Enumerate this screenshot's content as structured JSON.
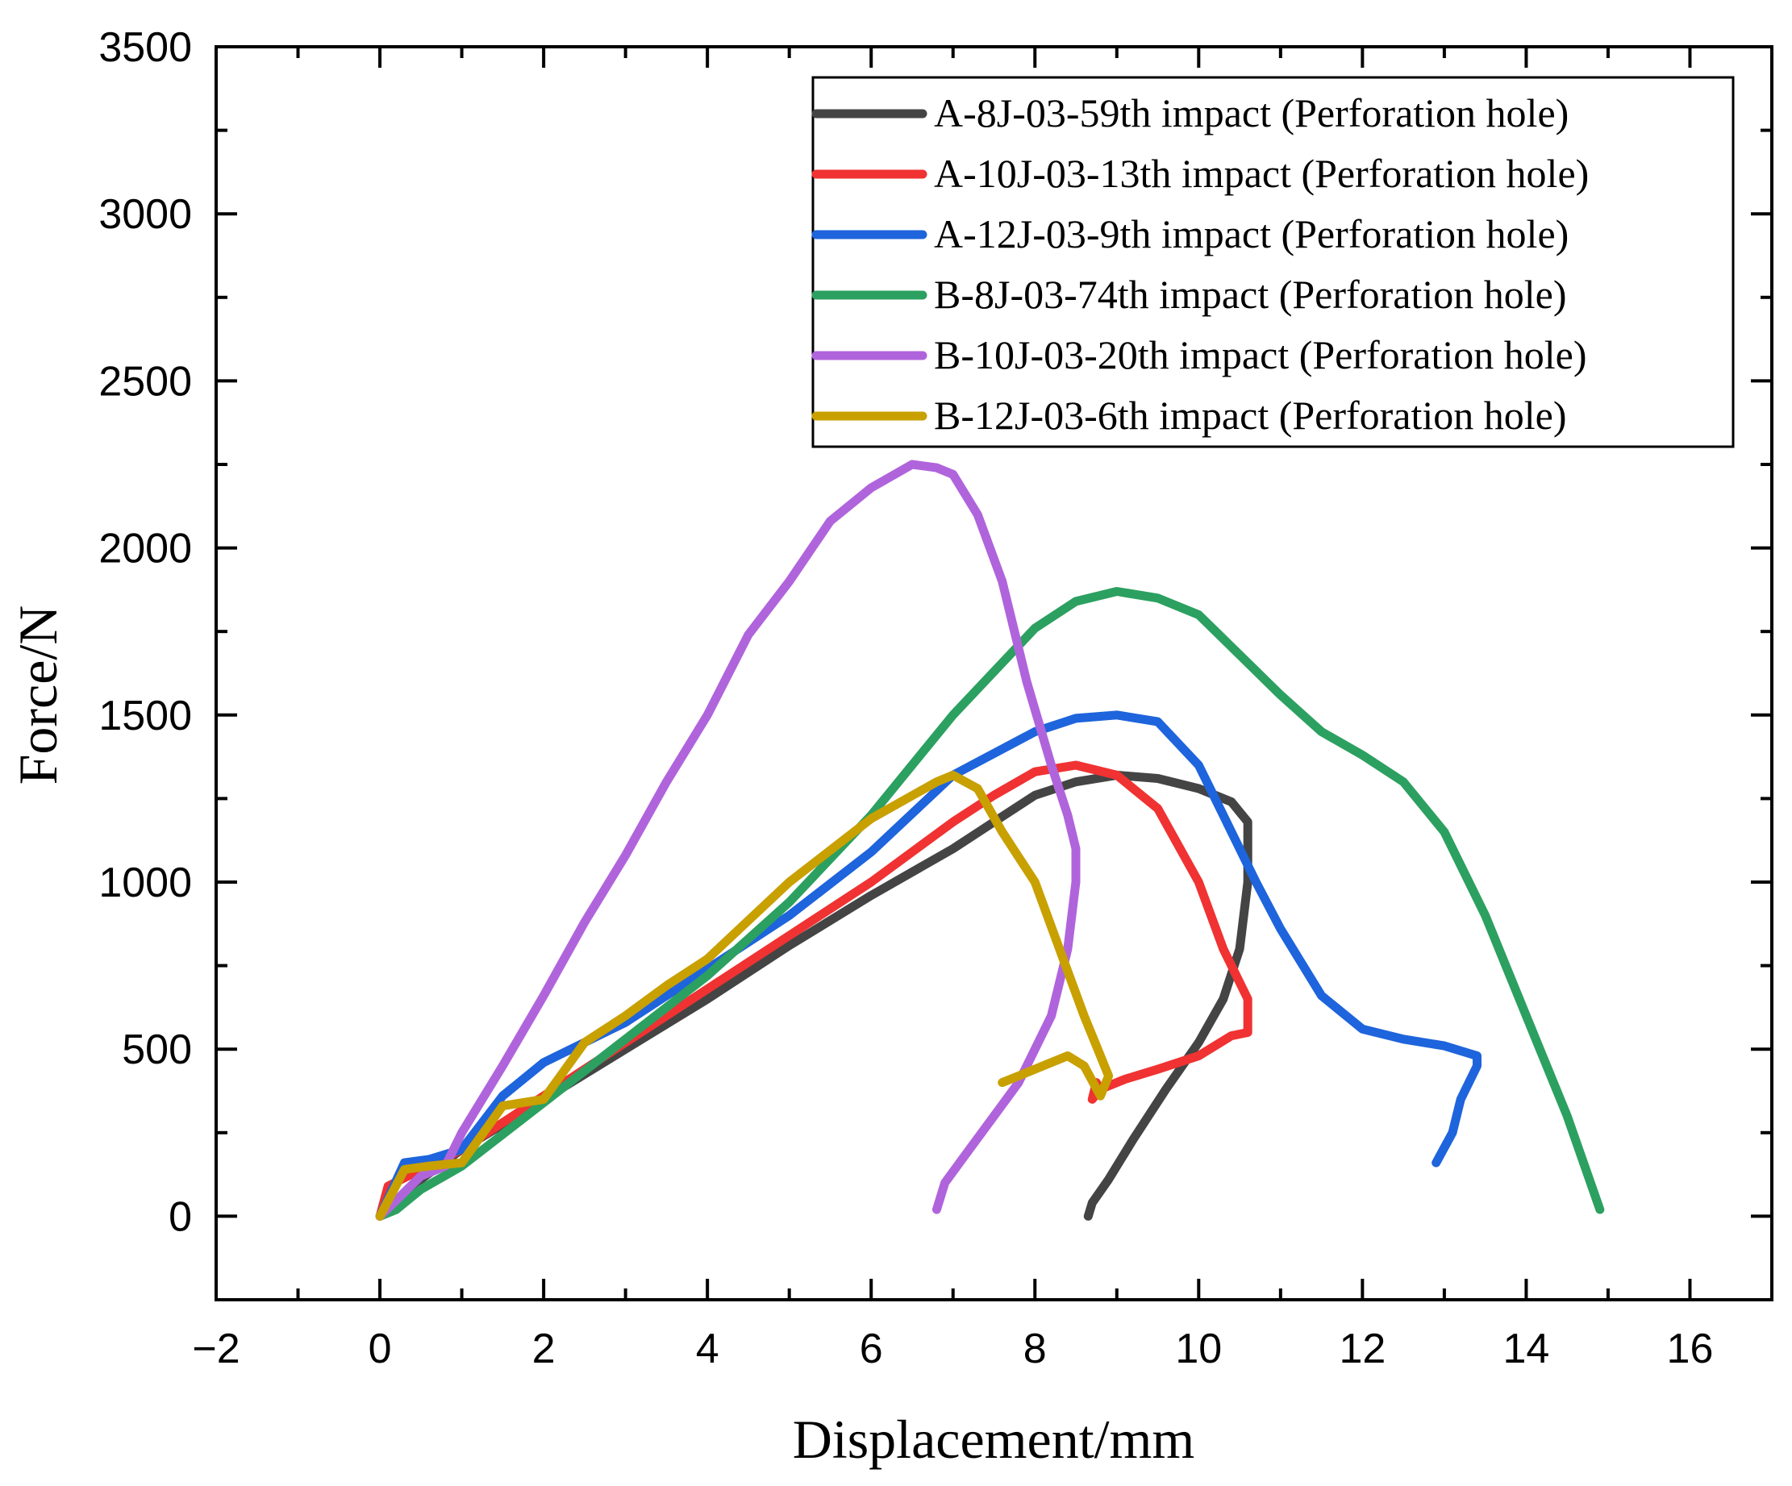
{
  "chart_data": {
    "type": "line",
    "title": "",
    "xlabel": "Displacement/mm",
    "ylabel": "Force/N",
    "xlim": [
      -2,
      17
    ],
    "ylim": [
      -250,
      3500
    ],
    "x_ticks": [
      -2,
      0,
      2,
      4,
      6,
      8,
      10,
      12,
      14,
      16
    ],
    "x_tick_labels": [
      "−2",
      "0",
      "2",
      "4",
      "6",
      "8",
      "10",
      "12",
      "14",
      "16"
    ],
    "y_ticks": [
      0,
      500,
      1000,
      1500,
      2000,
      2500,
      3000,
      3500
    ],
    "y_tick_labels": [
      "0",
      "500",
      "1000",
      "1500",
      "2000",
      "2500",
      "3000",
      "3500"
    ],
    "legend_position": "top-right",
    "series": [
      {
        "name": "A-8J-03-59th impact (Perforation hole)",
        "color": "#444444",
        "x": [
          0,
          0.5,
          1,
          2,
          3,
          4,
          5,
          6,
          7,
          7.5,
          8,
          8.5,
          9,
          9.5,
          10,
          10.4,
          10.6,
          10.6,
          10.5,
          10.3,
          10,
          9.6,
          9.2,
          8.9,
          8.7,
          8.65
        ],
        "y": [
          0,
          110,
          200,
          350,
          500,
          650,
          810,
          960,
          1100,
          1180,
          1260,
          1300,
          1320,
          1310,
          1280,
          1240,
          1180,
          1000,
          800,
          650,
          520,
          380,
          230,
          110,
          40,
          0
        ]
      },
      {
        "name": "A-10J-03-13th impact (Perforation hole)",
        "color": "#f03232",
        "x": [
          0,
          0.1,
          0.5,
          1,
          2,
          3,
          4,
          5,
          6,
          7,
          7.5,
          8,
          8.5,
          9,
          9.5,
          10,
          10.3,
          10.6,
          10.6,
          10.4,
          10,
          9.5,
          9.1,
          8.8,
          8.7,
          8.75,
          8.8
        ],
        "y": [
          0,
          90,
          140,
          200,
          360,
          520,
          680,
          840,
          1000,
          1180,
          1260,
          1330,
          1350,
          1320,
          1220,
          1000,
          800,
          650,
          550,
          540,
          480,
          440,
          410,
          380,
          350,
          400,
          380
        ]
      },
      {
        "name": "A-12J-03-9th impact (Perforation hole)",
        "color": "#1e64dc",
        "x": [
          0,
          0.3,
          0.6,
          1,
          1.5,
          2,
          3,
          4,
          5,
          6,
          7,
          8,
          8.5,
          9,
          9.5,
          10,
          10.3,
          10.7,
          11,
          11.5,
          12,
          12.5,
          13,
          13.4,
          13.4,
          13.2,
          13.1,
          12.9
        ],
        "y": [
          0,
          160,
          170,
          200,
          360,
          460,
          580,
          740,
          900,
          1090,
          1320,
          1450,
          1490,
          1500,
          1480,
          1350,
          1200,
          1000,
          860,
          660,
          560,
          530,
          510,
          480,
          450,
          350,
          250,
          160
        ]
      },
      {
        "name": "B-8J-03-74th impact (Perforation hole)",
        "color": "#2ca060",
        "x": [
          0,
          0.2,
          0.5,
          1,
          2,
          3,
          4,
          5,
          6,
          7,
          8,
          8.5,
          9,
          9.5,
          10,
          10.5,
          11,
          11.5,
          12,
          12.5,
          13,
          13.5,
          14,
          14.5,
          14.9
        ],
        "y": [
          0,
          20,
          80,
          150,
          340,
          530,
          720,
          940,
          1200,
          1500,
          1760,
          1840,
          1870,
          1850,
          1800,
          1680,
          1560,
          1450,
          1380,
          1300,
          1150,
          900,
          600,
          300,
          20
        ]
      },
      {
        "name": "B-10J-03-20th impact (Perforation hole)",
        "color": "#b064dc",
        "x": [
          0,
          0.5,
          0.8,
          1,
          1.5,
          2,
          2.5,
          3,
          3.5,
          4,
          4.5,
          5,
          5.5,
          6,
          6.5,
          6.8,
          7,
          7.3,
          7.6,
          7.9,
          8.2,
          8.4,
          8.5,
          8.5,
          8.4,
          8.2,
          7.8,
          7.5,
          7.2,
          6.9,
          6.8
        ],
        "y": [
          0,
          120,
          150,
          250,
          450,
          660,
          880,
          1080,
          1300,
          1500,
          1740,
          1900,
          2080,
          2180,
          2250,
          2240,
          2220,
          2100,
          1900,
          1600,
          1350,
          1200,
          1100,
          1000,
          800,
          600,
          400,
          300,
          200,
          100,
          20
        ]
      },
      {
        "name": "B-12J-03-6th impact (Perforation hole)",
        "color": "#c8a000",
        "x": [
          0,
          0.3,
          0.6,
          1,
          1.5,
          2,
          2.5,
          3,
          3.5,
          4,
          5,
          6,
          6.8,
          7,
          7.3,
          7.6,
          8,
          8.3,
          8.6,
          8.8,
          8.9,
          8.8,
          8.6,
          8.4,
          8.1,
          7.8,
          7.6
        ],
        "y": [
          0,
          140,
          150,
          160,
          330,
          350,
          520,
          600,
          690,
          770,
          1000,
          1190,
          1300,
          1320,
          1280,
          1150,
          1000,
          800,
          600,
          480,
          420,
          360,
          450,
          480,
          450,
          420,
          400
        ]
      }
    ]
  }
}
